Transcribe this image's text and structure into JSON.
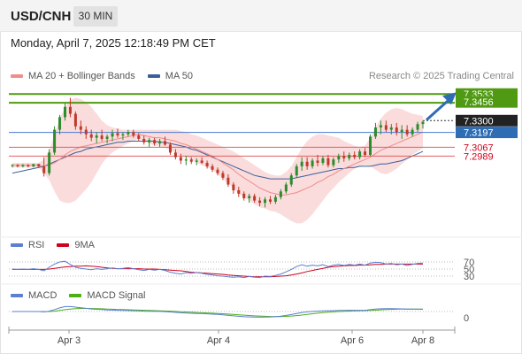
{
  "header": {
    "symbol": "USD/CNH",
    "timeframe": "30 MIN"
  },
  "datetime": "Monday, April 7, 2025 12:18:49 PM CET",
  "legend": {
    "main": [
      {
        "name": "MA 20 + Bollinger Bands",
        "color": "#f08c8c"
      },
      {
        "name": "MA 50",
        "color": "#3d5f99"
      }
    ],
    "rsi": [
      {
        "name": "RSI",
        "color": "#5b7fd1"
      },
      {
        "name": "9MA",
        "color": "#d0021b"
      }
    ],
    "macd": [
      {
        "name": "MACD",
        "color": "#5b7fd1"
      },
      {
        "name": "MACD Signal",
        "color": "#4caf1a"
      }
    ]
  },
  "credit": "Research © 2025 Trading Central",
  "colors": {
    "bull": "#2e8b2e",
    "bear": "#c0392b",
    "band": "#f7c9c9",
    "ma20": "#f08c8c",
    "ma50": "#3d5f99",
    "resistance": "#4f9a12",
    "support": "#e06060",
    "pivot": "#4a7ad0",
    "arrow": "#2e6db4",
    "grid": "#bbbbbb",
    "axis": "#999999"
  },
  "chart_data": {
    "type": "candlestick",
    "x_ticks": [
      "Apr 3",
      "Apr 4",
      "Apr 6",
      "Apr 8"
    ],
    "price_levels": [
      {
        "value": "7.3533",
        "role": "resistance-target",
        "color": "#4f9a12"
      },
      {
        "value": "7.3456",
        "role": "resistance",
        "color": "#4f9a12"
      },
      {
        "value": "7.3300",
        "role": "last-price",
        "color": "#222222"
      },
      {
        "value": "7.3197",
        "role": "pivot",
        "color": "#2e6db4"
      },
      {
        "value": "7.3067",
        "role": "support",
        "color": "#d0021b"
      },
      {
        "value": "7.2989",
        "role": "support",
        "color": "#d0021b"
      }
    ],
    "ylim": [
      7.238,
      7.362
    ],
    "candles": [
      [
        7.291,
        7.292,
        7.289,
        7.291
      ],
      [
        7.291,
        7.292,
        7.289,
        7.29
      ],
      [
        7.29,
        7.292,
        7.289,
        7.291
      ],
      [
        7.291,
        7.292,
        7.289,
        7.29
      ],
      [
        7.29,
        7.292,
        7.289,
        7.292
      ],
      [
        7.292,
        7.292,
        7.289,
        7.29
      ],
      [
        7.29,
        7.298,
        7.281,
        7.284
      ],
      [
        7.284,
        7.305,
        7.282,
        7.302
      ],
      [
        7.302,
        7.325,
        7.3,
        7.322
      ],
      [
        7.322,
        7.335,
        7.318,
        7.333
      ],
      [
        7.333,
        7.345,
        7.33,
        7.342
      ],
      [
        7.342,
        7.35,
        7.333,
        7.336
      ],
      [
        7.336,
        7.338,
        7.322,
        7.325
      ],
      [
        7.325,
        7.33,
        7.318,
        7.322
      ],
      [
        7.322,
        7.325,
        7.314,
        7.318
      ],
      [
        7.318,
        7.322,
        7.312,
        7.315
      ],
      [
        7.315,
        7.32,
        7.31,
        7.317
      ],
      [
        7.317,
        7.322,
        7.312,
        7.314
      ],
      [
        7.314,
        7.318,
        7.31,
        7.316
      ],
      [
        7.316,
        7.322,
        7.312,
        7.319
      ],
      [
        7.319,
        7.323,
        7.315,
        7.317
      ],
      [
        7.317,
        7.32,
        7.313,
        7.318
      ],
      [
        7.318,
        7.322,
        7.316,
        7.32
      ],
      [
        7.32,
        7.322,
        7.315,
        7.317
      ],
      [
        7.317,
        7.319,
        7.312,
        7.314
      ],
      [
        7.314,
        7.317,
        7.309,
        7.311
      ],
      [
        7.311,
        7.315,
        7.307,
        7.313
      ],
      [
        7.313,
        7.315,
        7.308,
        7.31
      ],
      [
        7.31,
        7.314,
        7.307,
        7.312
      ],
      [
        7.312,
        7.316,
        7.308,
        7.309
      ],
      [
        7.309,
        7.311,
        7.3,
        7.302
      ],
      [
        7.302,
        7.305,
        7.296,
        7.298
      ],
      [
        7.298,
        7.301,
        7.292,
        7.295
      ],
      [
        7.295,
        7.299,
        7.291,
        7.296
      ],
      [
        7.296,
        7.298,
        7.292,
        7.294
      ],
      [
        7.294,
        7.297,
        7.291,
        7.295
      ],
      [
        7.295,
        7.298,
        7.292,
        7.293
      ],
      [
        7.293,
        7.295,
        7.288,
        7.29
      ],
      [
        7.29,
        7.292,
        7.285,
        7.287
      ],
      [
        7.287,
        7.289,
        7.282,
        7.284
      ],
      [
        7.284,
        7.286,
        7.278,
        7.28
      ],
      [
        7.28,
        7.283,
        7.272,
        7.274
      ],
      [
        7.274,
        7.276,
        7.266,
        7.269
      ],
      [
        7.269,
        7.272,
        7.263,
        7.266
      ],
      [
        7.266,
        7.268,
        7.26,
        7.262
      ],
      [
        7.262,
        7.266,
        7.258,
        7.264
      ],
      [
        7.264,
        7.266,
        7.258,
        7.26
      ],
      [
        7.26,
        7.263,
        7.255,
        7.258
      ],
      [
        7.258,
        7.263,
        7.254,
        7.261
      ],
      [
        7.261,
        7.264,
        7.257,
        7.259
      ],
      [
        7.259,
        7.265,
        7.257,
        7.263
      ],
      [
        7.263,
        7.27,
        7.261,
        7.268
      ],
      [
        7.268,
        7.276,
        7.266,
        7.274
      ],
      [
        7.274,
        7.284,
        7.272,
        7.282
      ],
      [
        7.282,
        7.292,
        7.28,
        7.29
      ],
      [
        7.29,
        7.298,
        7.286,
        7.294
      ],
      [
        7.294,
        7.298,
        7.287,
        7.29
      ],
      [
        7.29,
        7.297,
        7.288,
        7.295
      ],
      [
        7.295,
        7.3,
        7.29,
        7.293
      ],
      [
        7.293,
        7.299,
        7.291,
        7.297
      ],
      [
        7.297,
        7.3,
        7.289,
        7.291
      ],
      [
        7.291,
        7.298,
        7.289,
        7.296
      ],
      [
        7.296,
        7.301,
        7.293,
        7.299
      ],
      [
        7.299,
        7.303,
        7.294,
        7.297
      ],
      [
        7.297,
        7.302,
        7.295,
        7.3
      ],
      [
        7.3,
        7.303,
        7.296,
        7.298
      ],
      [
        7.298,
        7.305,
        7.296,
        7.303
      ],
      [
        7.303,
        7.306,
        7.298,
        7.3
      ],
      [
        7.3,
        7.318,
        7.299,
        7.316
      ],
      [
        7.316,
        7.328,
        7.314,
        7.324
      ],
      [
        7.324,
        7.33,
        7.318,
        7.326
      ],
      [
        7.326,
        7.33,
        7.32,
        7.322
      ],
      [
        7.322,
        7.327,
        7.318,
        7.324
      ],
      [
        7.324,
        7.328,
        7.317,
        7.32
      ],
      [
        7.32,
        7.326,
        7.314,
        7.322
      ],
      [
        7.322,
        7.326,
        7.316,
        7.318
      ],
      [
        7.318,
        7.324,
        7.316,
        7.322
      ],
      [
        7.322,
        7.329,
        7.32,
        7.327
      ],
      [
        7.327,
        7.33,
        7.323,
        7.329
      ]
    ],
    "ma20": [
      7.291,
      7.291,
      7.291,
      7.291,
      7.291,
      7.291,
      7.29,
      7.291,
      7.293,
      7.296,
      7.3,
      7.303,
      7.305,
      7.307,
      7.308,
      7.309,
      7.31,
      7.311,
      7.312,
      7.313,
      7.314,
      7.315,
      7.316,
      7.317,
      7.318,
      7.317,
      7.316,
      7.315,
      7.315,
      7.314,
      7.313,
      7.312,
      7.31,
      7.309,
      7.307,
      7.305,
      7.303,
      7.301,
      7.299,
      7.296,
      7.293,
      7.29,
      7.287,
      7.283,
      7.28,
      7.277,
      7.274,
      7.271,
      7.269,
      7.267,
      7.266,
      7.265,
      7.265,
      7.266,
      7.267,
      7.269,
      7.271,
      7.273,
      7.276,
      7.278,
      7.281,
      7.283,
      7.286,
      7.288,
      7.29,
      7.292,
      7.294,
      7.296,
      7.298,
      7.301,
      7.304,
      7.306,
      7.308,
      7.31,
      7.312,
      7.314,
      7.316,
      7.318,
      7.32
    ],
    "upper_band": [
      7.293,
      7.293,
      7.293,
      7.293,
      7.293,
      7.293,
      7.296,
      7.304,
      7.318,
      7.332,
      7.342,
      7.348,
      7.35,
      7.349,
      7.346,
      7.342,
      7.336,
      7.33,
      7.326,
      7.324,
      7.323,
      7.322,
      7.322,
      7.322,
      7.322,
      7.322,
      7.322,
      7.322,
      7.322,
      7.322,
      7.322,
      7.322,
      7.321,
      7.32,
      7.318,
      7.317,
      7.315,
      7.313,
      7.311,
      7.309,
      7.307,
      7.305,
      7.303,
      7.3,
      7.297,
      7.294,
      7.291,
      7.288,
      7.285,
      7.283,
      7.282,
      7.282,
      7.285,
      7.29,
      7.298,
      7.306,
      7.312,
      7.316,
      7.318,
      7.318,
      7.317,
      7.316,
      7.315,
      7.312,
      7.31,
      7.308,
      7.307,
      7.308,
      7.315,
      7.324,
      7.332,
      7.337,
      7.34,
      7.341,
      7.34,
      7.338,
      7.336,
      7.335,
      7.334
    ],
    "lower_band": [
      7.289,
      7.289,
      7.289,
      7.289,
      7.289,
      7.289,
      7.284,
      7.278,
      7.268,
      7.26,
      7.258,
      7.258,
      7.26,
      7.265,
      7.27,
      7.276,
      7.284,
      7.292,
      7.298,
      7.302,
      7.305,
      7.308,
      7.31,
      7.312,
      7.314,
      7.312,
      7.31,
      7.308,
      7.308,
      7.306,
      7.304,
      7.302,
      7.299,
      7.298,
      7.296,
      7.293,
      7.291,
      7.289,
      7.287,
      7.283,
      7.279,
      7.275,
      7.271,
      7.266,
      7.263,
      7.26,
      7.257,
      7.254,
      7.253,
      7.251,
      7.25,
      7.248,
      7.245,
      7.242,
      7.24,
      7.24,
      7.243,
      7.248,
      7.254,
      7.26,
      7.266,
      7.271,
      7.276,
      7.28,
      7.284,
      7.288,
      7.29,
      7.291,
      7.29,
      7.287,
      7.284,
      7.283,
      7.285,
      7.288,
      7.292,
      7.296,
      7.3,
      7.303,
      7.306
    ],
    "ma50": [
      7.284,
      7.285,
      7.286,
      7.287,
      7.288,
      7.289,
      7.29,
      7.292,
      7.294,
      7.296,
      7.298,
      7.3,
      7.302,
      7.303,
      7.305,
      7.306,
      7.307,
      7.308,
      7.309,
      7.31,
      7.311,
      7.311,
      7.312,
      7.312,
      7.312,
      7.312,
      7.312,
      7.312,
      7.311,
      7.311,
      7.31,
      7.309,
      7.308,
      7.307,
      7.305,
      7.304,
      7.302,
      7.3,
      7.298,
      7.296,
      7.294,
      7.292,
      7.29,
      7.288,
      7.286,
      7.284,
      7.282,
      7.281,
      7.28,
      7.279,
      7.279,
      7.279,
      7.279,
      7.279,
      7.28,
      7.281,
      7.282,
      7.283,
      7.284,
      7.285,
      7.286,
      7.287,
      7.288,
      7.288,
      7.289,
      7.289,
      7.29,
      7.29,
      7.29,
      7.291,
      7.292,
      7.292,
      7.293,
      7.294,
      7.295,
      7.297,
      7.299,
      7.301,
      7.303
    ],
    "rsi": {
      "levels": [
        "70",
        "50",
        "30"
      ],
      "rsi": [
        50,
        49,
        50,
        49,
        51,
        49,
        45,
        55,
        64,
        70,
        72,
        63,
        55,
        52,
        50,
        48,
        51,
        49,
        51,
        53,
        51,
        52,
        54,
        51,
        48,
        46,
        49,
        47,
        49,
        46,
        41,
        38,
        36,
        40,
        38,
        40,
        38,
        35,
        33,
        31,
        30,
        28,
        27,
        28,
        26,
        29,
        27,
        26,
        30,
        29,
        32,
        36,
        42,
        49,
        57,
        62,
        58,
        61,
        59,
        62,
        57,
        61,
        63,
        60,
        63,
        61,
        64,
        61,
        67,
        69,
        68,
        64,
        66,
        62,
        64,
        60,
        63,
        66,
        67
      ],
      "ma9": [
        49,
        49,
        49,
        49,
        49,
        49,
        49,
        50,
        52,
        54,
        56,
        57,
        58,
        58,
        59,
        58,
        57,
        55,
        53,
        52,
        51,
        51,
        51,
        51,
        51,
        50,
        50,
        50,
        49,
        48,
        47,
        46,
        45,
        43,
        41,
        40,
        39,
        38,
        37,
        36,
        35,
        33,
        32,
        31,
        30,
        29,
        28,
        28,
        28,
        28,
        29,
        30,
        31,
        33,
        36,
        39,
        43,
        46,
        49,
        52,
        55,
        57,
        58,
        59,
        60,
        60,
        61,
        61,
        62,
        63,
        63,
        64,
        64,
        64,
        64,
        64,
        64,
        64,
        64
      ]
    },
    "macd": {
      "levels": [
        "0"
      ],
      "macd": [
        0.0,
        0.0,
        0.0,
        0.0,
        0.0,
        0.0,
        -0.4,
        0.5,
        2.5,
        4.5,
        6.2,
        6.2,
        5.6,
        4.8,
        4.0,
        3.2,
        2.8,
        2.4,
        2.0,
        1.8,
        1.5,
        1.3,
        1.2,
        1.0,
        0.8,
        0.5,
        0.3,
        0.2,
        0.1,
        -0.1,
        -0.6,
        -1.1,
        -1.6,
        -1.9,
        -2.2,
        -2.4,
        -2.6,
        -2.9,
        -3.3,
        -3.7,
        -4.2,
        -4.8,
        -5.5,
        -6.0,
        -6.5,
        -6.8,
        -7.0,
        -7.1,
        -7.0,
        -6.8,
        -6.4,
        -5.8,
        -4.9,
        -3.8,
        -2.5,
        -1.2,
        -0.5,
        0.1,
        0.5,
        0.9,
        1.0,
        1.1,
        1.3,
        1.4,
        1.5,
        1.5,
        1.6,
        1.6,
        2.3,
        3.0,
        3.5,
        3.6,
        3.6,
        3.5,
        3.3,
        3.1,
        3.0,
        2.9,
        2.8
      ],
      "signal": [
        0.0,
        0.0,
        0.0,
        0.0,
        0.0,
        0.0,
        -0.1,
        0.0,
        0.5,
        1.3,
        2.3,
        3.1,
        3.6,
        3.9,
        3.9,
        3.8,
        3.6,
        3.4,
        3.1,
        2.9,
        2.6,
        2.4,
        2.2,
        2.0,
        1.8,
        1.5,
        1.3,
        1.1,
        0.9,
        0.7,
        0.4,
        0.1,
        -0.3,
        -0.6,
        -0.9,
        -1.2,
        -1.5,
        -1.8,
        -2.1,
        -2.4,
        -2.8,
        -3.2,
        -3.6,
        -4.1,
        -4.5,
        -5.0,
        -5.4,
        -5.7,
        -6.0,
        -6.2,
        -6.3,
        -6.3,
        -6.1,
        -5.7,
        -5.1,
        -4.4,
        -3.6,
        -2.8,
        -2.1,
        -1.4,
        -0.9,
        -0.4,
        0.0,
        0.3,
        0.6,
        0.8,
        1.0,
        1.1,
        1.4,
        1.7,
        2.1,
        2.4,
        2.7,
        2.9,
        3.0,
        3.0,
        3.0,
        3.0,
        3.0
      ]
    }
  }
}
